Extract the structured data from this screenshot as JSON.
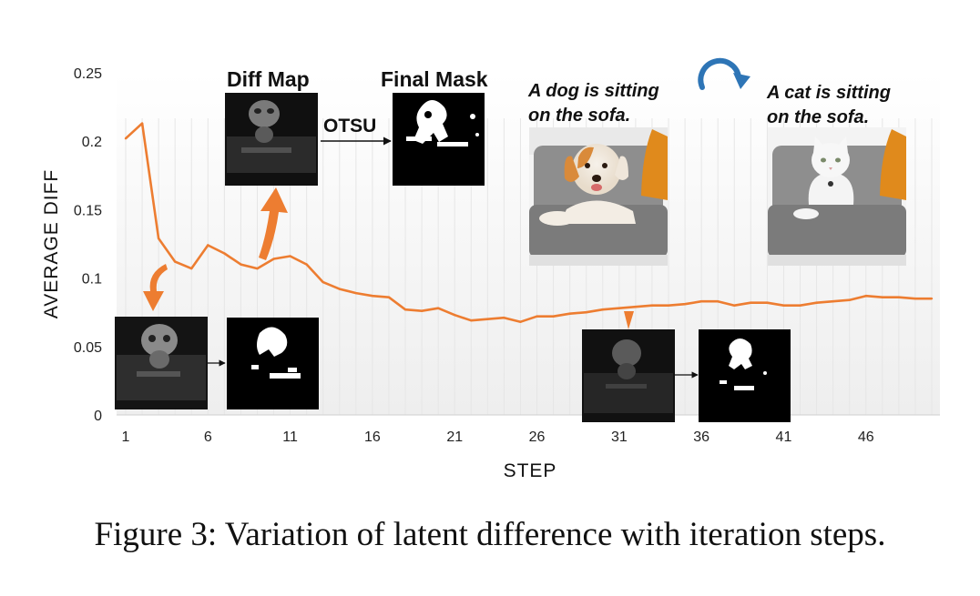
{
  "chart_data": {
    "type": "line",
    "xlabel": "STEP",
    "ylabel": "AVERAGE DIFF",
    "ylim": [
      0,
      0.25
    ],
    "xlim": [
      1,
      50
    ],
    "y_ticks": [
      "0",
      "0.05",
      "0.1",
      "0.15",
      "0.2",
      "0.25"
    ],
    "x_ticks": [
      "1",
      "6",
      "11",
      "16",
      "21",
      "26",
      "31",
      "36",
      "41",
      "46"
    ],
    "grid": "vertical light gridlines",
    "line_color": "#ED7D31",
    "series": [
      {
        "x": [
          1,
          2,
          3,
          4,
          5,
          6,
          7,
          8,
          9,
          10,
          11,
          12,
          13,
          14,
          15,
          16,
          17,
          18,
          19,
          20,
          21,
          22,
          23,
          24,
          25,
          26,
          27,
          28,
          29,
          30,
          31,
          32,
          33,
          34,
          35,
          36,
          37,
          38,
          39,
          40,
          41,
          42,
          43,
          44,
          45,
          46,
          47,
          48,
          49,
          50
        ],
        "values": [
          0.202,
          0.213,
          0.129,
          0.112,
          0.107,
          0.124,
          0.118,
          0.11,
          0.107,
          0.114,
          0.116,
          0.11,
          0.097,
          0.092,
          0.089,
          0.087,
          0.086,
          0.077,
          0.076,
          0.078,
          0.073,
          0.069,
          0.07,
          0.071,
          0.068,
          0.072,
          0.072,
          0.074,
          0.075,
          0.077,
          0.078,
          0.079,
          0.08,
          0.08,
          0.081,
          0.083,
          0.083,
          0.08,
          0.082,
          0.082,
          0.08,
          0.08,
          0.082,
          0.083,
          0.084,
          0.087,
          0.086,
          0.086,
          0.085,
          0.085
        ]
      }
    ]
  },
  "labels": {
    "diff_map": "Diff Map",
    "final_mask": "Final Mask",
    "otsu": "OTSU",
    "prompt_source_line1": "A dog is sitting",
    "prompt_source_line2": "on the sofa.",
    "prompt_target_line1": "A cat is sitting",
    "prompt_target_line2": "on the sofa."
  },
  "caption": "Figure 3: Variation of latent difference with iteration steps.",
  "colors": {
    "accent": "#ED7D31",
    "redo_arrow": "#2E75B6"
  },
  "icons": [
    "redo-arrow-icon",
    "orange-arrow-icon"
  ]
}
